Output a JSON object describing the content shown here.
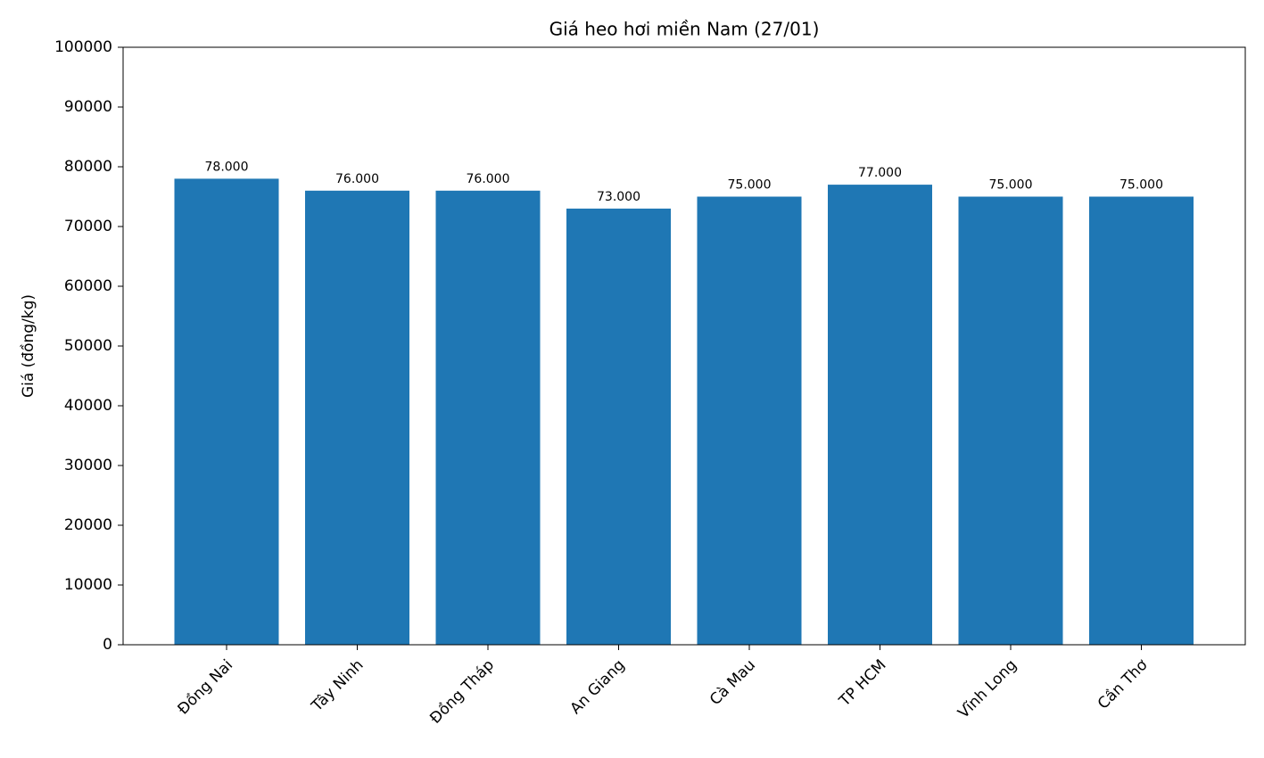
{
  "chart_data": {
    "type": "bar",
    "title": "Giá heo hơi miền Nam (27/01)",
    "y_label": "Giá (đồng/kg)",
    "categories": [
      "Đồng Nai",
      "Tây Ninh",
      "Đồng Tháp",
      "An Giang",
      "Cà Mau",
      "TP HCM",
      "Vĩnh Long",
      "Cần Thơ"
    ],
    "values": [
      78000,
      76000,
      76000,
      73000,
      75000,
      77000,
      75000,
      75000
    ],
    "value_labels": [
      "78.000",
      "76.000",
      "76.000",
      "73.000",
      "75.000",
      "77.000",
      "75.000",
      "75.000"
    ],
    "color": "#1f77b4",
    "ylim": [
      0,
      100000
    ],
    "yticks": [
      0,
      10000,
      20000,
      30000,
      40000,
      50000,
      60000,
      70000,
      80000,
      90000,
      100000
    ],
    "grid": false
  }
}
